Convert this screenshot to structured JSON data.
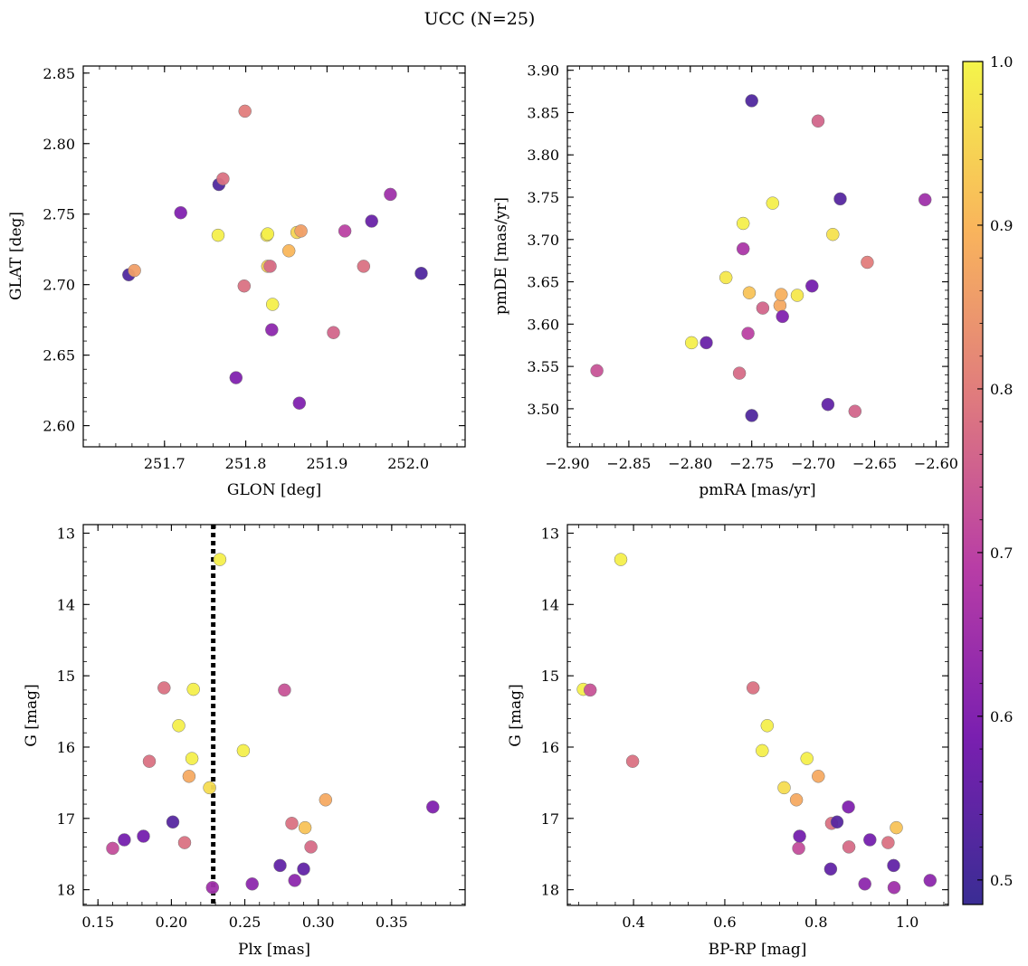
{
  "figure": {
    "suptitle": "UCC (N=25)"
  },
  "colorbar": {
    "vmin": 0.485,
    "vmax": 1.0,
    "ticks": [
      0.5,
      0.6,
      0.7,
      0.8,
      0.9,
      1.0
    ],
    "tick_labels": [
      "0.5",
      "0.6",
      "0.7",
      "0.8",
      "0.9",
      "1.0"
    ],
    "colormap": "plasma",
    "stops": [
      "#3a2d94",
      "#7a1fb0",
      "#b83da6",
      "#df7a7e",
      "#f9b45c",
      "#f4f54a"
    ]
  },
  "chart_data": [
    {
      "type": "scatter",
      "panel": "top-left",
      "xlabel": "GLON [deg]",
      "ylabel": "GLAT [deg]",
      "xlim": [
        251.6,
        252.07
      ],
      "ylim": [
        2.585,
        2.855
      ],
      "xticks": [
        251.7,
        251.8,
        251.9,
        252.0
      ],
      "xtick_labels": [
        "251.7",
        "251.8",
        "251.9",
        "252.0"
      ],
      "yticks": [
        2.6,
        2.65,
        2.7,
        2.75,
        2.8,
        2.85
      ],
      "ytick_labels": [
        "2.60",
        "2.65",
        "2.70",
        "2.75",
        "2.80",
        "2.85"
      ],
      "y_inverted": false,
      "points": [
        {
          "x": 251.656,
          "y": 2.707,
          "c": 0.52
        },
        {
          "x": 251.663,
          "y": 2.71,
          "c": 0.86
        },
        {
          "x": 251.72,
          "y": 2.751,
          "c": 0.6
        },
        {
          "x": 251.766,
          "y": 2.735,
          "c": 0.99
        },
        {
          "x": 251.767,
          "y": 2.771,
          "c": 0.52
        },
        {
          "x": 251.772,
          "y": 2.775,
          "c": 0.78
        },
        {
          "x": 251.788,
          "y": 2.634,
          "c": 0.6
        },
        {
          "x": 251.798,
          "y": 2.699,
          "c": 0.78
        },
        {
          "x": 251.799,
          "y": 2.823,
          "c": 0.8
        },
        {
          "x": 251.826,
          "y": 2.735,
          "c": 0.98
        },
        {
          "x": 251.827,
          "y": 2.736,
          "c": 0.99
        },
        {
          "x": 251.827,
          "y": 2.713,
          "c": 0.94
        },
        {
          "x": 251.83,
          "y": 2.713,
          "c": 0.77
        },
        {
          "x": 251.833,
          "y": 2.686,
          "c": 0.99
        },
        {
          "x": 251.832,
          "y": 2.668,
          "c": 0.62
        },
        {
          "x": 251.853,
          "y": 2.724,
          "c": 0.9
        },
        {
          "x": 251.863,
          "y": 2.737,
          "c": 0.95
        },
        {
          "x": 251.868,
          "y": 2.738,
          "c": 0.86
        },
        {
          "x": 251.866,
          "y": 2.616,
          "c": 0.6
        },
        {
          "x": 251.908,
          "y": 2.666,
          "c": 0.76
        },
        {
          "x": 251.922,
          "y": 2.738,
          "c": 0.7
        },
        {
          "x": 251.945,
          "y": 2.713,
          "c": 0.78
        },
        {
          "x": 251.955,
          "y": 2.745,
          "c": 0.56
        },
        {
          "x": 251.978,
          "y": 2.764,
          "c": 0.65
        },
        {
          "x": 252.016,
          "y": 2.708,
          "c": 0.52
        }
      ]
    },
    {
      "type": "scatter",
      "panel": "top-right",
      "xlabel": "pmRA [mas/yr]",
      "ylabel": "pmDE [mas/yr]",
      "xlim": [
        -2.9,
        -2.59
      ],
      "ylim": [
        3.455,
        3.905
      ],
      "xticks": [
        -2.9,
        -2.85,
        -2.8,
        -2.75,
        -2.7,
        -2.65,
        -2.6
      ],
      "xtick_labels": [
        "−2.90",
        "−2.85",
        "−2.80",
        "−2.75",
        "−2.70",
        "−2.65",
        "−2.60"
      ],
      "yticks": [
        3.5,
        3.55,
        3.6,
        3.65,
        3.7,
        3.75,
        3.8,
        3.85,
        3.9
      ],
      "ytick_labels": [
        "3.50",
        "3.55",
        "3.60",
        "3.65",
        "3.70",
        "3.75",
        "3.80",
        "3.85",
        "3.90"
      ],
      "y_inverted": false,
      "points": [
        {
          "x": -2.876,
          "y": 3.545,
          "c": 0.73
        },
        {
          "x": -2.799,
          "y": 3.578,
          "c": 0.99
        },
        {
          "x": -2.787,
          "y": 3.578,
          "c": 0.56
        },
        {
          "x": -2.771,
          "y": 3.655,
          "c": 0.98
        },
        {
          "x": -2.76,
          "y": 3.542,
          "c": 0.77
        },
        {
          "x": -2.757,
          "y": 3.719,
          "c": 0.99
        },
        {
          "x": -2.757,
          "y": 3.689,
          "c": 0.67
        },
        {
          "x": -2.753,
          "y": 3.589,
          "c": 0.7
        },
        {
          "x": -2.752,
          "y": 3.637,
          "c": 0.92
        },
        {
          "x": -2.75,
          "y": 3.864,
          "c": 0.52
        },
        {
          "x": -2.75,
          "y": 3.492,
          "c": 0.52
        },
        {
          "x": -2.741,
          "y": 3.619,
          "c": 0.76
        },
        {
          "x": -2.733,
          "y": 3.743,
          "c": 0.99
        },
        {
          "x": -2.727,
          "y": 3.622,
          "c": 0.88
        },
        {
          "x": -2.726,
          "y": 3.635,
          "c": 0.89
        },
        {
          "x": -2.725,
          "y": 3.609,
          "c": 0.6
        },
        {
          "x": -2.713,
          "y": 3.634,
          "c": 0.98
        },
        {
          "x": -2.701,
          "y": 3.645,
          "c": 0.58
        },
        {
          "x": -2.696,
          "y": 3.84,
          "c": 0.76
        },
        {
          "x": -2.688,
          "y": 3.505,
          "c": 0.55
        },
        {
          "x": -2.684,
          "y": 3.706,
          "c": 0.97
        },
        {
          "x": -2.678,
          "y": 3.748,
          "c": 0.53
        },
        {
          "x": -2.666,
          "y": 3.497,
          "c": 0.76
        },
        {
          "x": -2.656,
          "y": 3.673,
          "c": 0.8
        },
        {
          "x": -2.609,
          "y": 3.747,
          "c": 0.65
        }
      ]
    },
    {
      "type": "scatter",
      "panel": "bottom-left",
      "xlabel": "Plx [mas]",
      "ylabel": "G [mag]",
      "xlim": [
        0.14,
        0.4
      ],
      "ylim": [
        12.88,
        18.22
      ],
      "xticks": [
        0.15,
        0.2,
        0.25,
        0.3,
        0.35
      ],
      "xtick_labels": [
        "0.15",
        "0.20",
        "0.25",
        "0.30",
        "0.35"
      ],
      "yticks": [
        13,
        14,
        15,
        16,
        17,
        18
      ],
      "ytick_labels": [
        "13",
        "14",
        "15",
        "16",
        "17",
        "18"
      ],
      "y_inverted": true,
      "vline": {
        "x": 0.2285,
        "style": "dotted",
        "color": "#000000"
      },
      "points": [
        {
          "x": 0.16,
          "y": 17.42,
          "c": 0.72
        },
        {
          "x": 0.168,
          "y": 17.3,
          "c": 0.58
        },
        {
          "x": 0.181,
          "y": 17.25,
          "c": 0.58
        },
        {
          "x": 0.185,
          "y": 16.2,
          "c": 0.78
        },
        {
          "x": 0.195,
          "y": 15.17,
          "c": 0.78
        },
        {
          "x": 0.201,
          "y": 17.05,
          "c": 0.53
        },
        {
          "x": 0.205,
          "y": 15.7,
          "c": 0.99
        },
        {
          "x": 0.209,
          "y": 17.34,
          "c": 0.78
        },
        {
          "x": 0.212,
          "y": 16.41,
          "c": 0.88
        },
        {
          "x": 0.214,
          "y": 16.16,
          "c": 0.99
        },
        {
          "x": 0.215,
          "y": 15.19,
          "c": 0.99
        },
        {
          "x": 0.226,
          "y": 16.57,
          "c": 0.96
        },
        {
          "x": 0.228,
          "y": 17.97,
          "c": 0.65
        },
        {
          "x": 0.233,
          "y": 13.37,
          "c": 0.99
        },
        {
          "x": 0.249,
          "y": 16.05,
          "c": 0.99
        },
        {
          "x": 0.255,
          "y": 17.92,
          "c": 0.62
        },
        {
          "x": 0.274,
          "y": 17.66,
          "c": 0.55
        },
        {
          "x": 0.277,
          "y": 15.2,
          "c": 0.73
        },
        {
          "x": 0.282,
          "y": 17.07,
          "c": 0.78
        },
        {
          "x": 0.284,
          "y": 17.87,
          "c": 0.62
        },
        {
          "x": 0.29,
          "y": 17.71,
          "c": 0.55
        },
        {
          "x": 0.291,
          "y": 17.13,
          "c": 0.92
        },
        {
          "x": 0.295,
          "y": 17.4,
          "c": 0.77
        },
        {
          "x": 0.305,
          "y": 16.74,
          "c": 0.88
        },
        {
          "x": 0.378,
          "y": 16.84,
          "c": 0.6
        }
      ]
    },
    {
      "type": "scatter",
      "panel": "bottom-right",
      "xlabel": "BP-RP [mag]",
      "ylabel": "G [mag]",
      "xlim": [
        0.255,
        1.09
      ],
      "ylim": [
        12.88,
        18.22
      ],
      "xticks": [
        0.4,
        0.6,
        0.8,
        1.0
      ],
      "xtick_labels": [
        "0.4",
        "0.6",
        "0.8",
        "1.0"
      ],
      "yticks": [
        13,
        14,
        15,
        16,
        17,
        18
      ],
      "ytick_labels": [
        "13",
        "14",
        "15",
        "16",
        "17",
        "18"
      ],
      "y_inverted": true,
      "points": [
        {
          "x": 0.29,
          "y": 15.19,
          "c": 0.99
        },
        {
          "x": 0.305,
          "y": 15.2,
          "c": 0.73
        },
        {
          "x": 0.372,
          "y": 13.37,
          "c": 0.99
        },
        {
          "x": 0.398,
          "y": 16.2,
          "c": 0.78
        },
        {
          "x": 0.662,
          "y": 15.17,
          "c": 0.78
        },
        {
          "x": 0.682,
          "y": 16.05,
          "c": 0.99
        },
        {
          "x": 0.693,
          "y": 15.7,
          "c": 0.99
        },
        {
          "x": 0.73,
          "y": 16.57,
          "c": 0.96
        },
        {
          "x": 0.757,
          "y": 16.74,
          "c": 0.88
        },
        {
          "x": 0.762,
          "y": 17.42,
          "c": 0.72
        },
        {
          "x": 0.764,
          "y": 17.25,
          "c": 0.58
        },
        {
          "x": 0.78,
          "y": 16.16,
          "c": 0.99
        },
        {
          "x": 0.805,
          "y": 16.41,
          "c": 0.88
        },
        {
          "x": 0.832,
          "y": 17.71,
          "c": 0.55
        },
        {
          "x": 0.834,
          "y": 17.07,
          "c": 0.78
        },
        {
          "x": 0.846,
          "y": 17.05,
          "c": 0.53
        },
        {
          "x": 0.871,
          "y": 16.84,
          "c": 0.6
        },
        {
          "x": 0.872,
          "y": 17.4,
          "c": 0.77
        },
        {
          "x": 0.907,
          "y": 17.92,
          "c": 0.62
        },
        {
          "x": 0.918,
          "y": 17.3,
          "c": 0.58
        },
        {
          "x": 0.958,
          "y": 17.34,
          "c": 0.78
        },
        {
          "x": 0.97,
          "y": 17.66,
          "c": 0.55
        },
        {
          "x": 0.971,
          "y": 17.97,
          "c": 0.65
        },
        {
          "x": 0.976,
          "y": 17.13,
          "c": 0.92
        },
        {
          "x": 1.05,
          "y": 17.87,
          "c": 0.62
        }
      ]
    }
  ]
}
